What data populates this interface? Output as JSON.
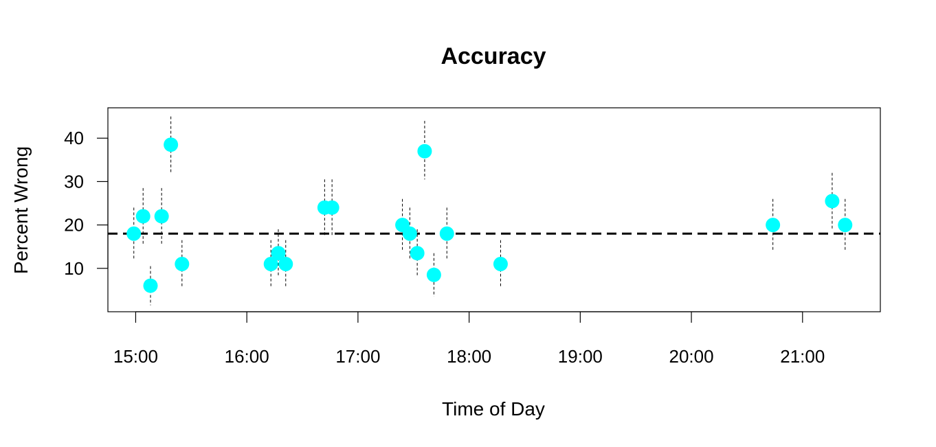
{
  "chart_data": {
    "type": "scatter",
    "title": "Accuracy",
    "xlabel": "Time of Day",
    "ylabel": "Percent Wrong",
    "xlim": [
      "14:45",
      "21:42"
    ],
    "ylim": [
      0,
      47
    ],
    "x_ticks": [
      "15:00",
      "16:00",
      "17:00",
      "18:00",
      "19:00",
      "20:00",
      "21:00"
    ],
    "y_ticks": [
      10,
      20,
      30,
      40
    ],
    "grid": false,
    "legend": "none",
    "reference_line": {
      "y": 18,
      "style": "dashed",
      "color": "#000000"
    },
    "point_color": "#00ffff",
    "error_bar_style": "dashed",
    "points": [
      {
        "x": "14:59",
        "y": 18.0,
        "lo": 12.0,
        "hi": 24.0
      },
      {
        "x": "15:04",
        "y": 22.0,
        "lo": 15.5,
        "hi": 28.5
      },
      {
        "x": "15:08",
        "y": 6.0,
        "lo": 1.5,
        "hi": 10.5
      },
      {
        "x": "15:14",
        "y": 22.0,
        "lo": 15.5,
        "hi": 28.5
      },
      {
        "x": "15:19",
        "y": 38.5,
        "lo": 32.0,
        "hi": 45.0
      },
      {
        "x": "15:25",
        "y": 11.0,
        "lo": 5.5,
        "hi": 16.5
      },
      {
        "x": "16:13",
        "y": 11.0,
        "lo": 5.5,
        "hi": 16.5
      },
      {
        "x": "16:17",
        "y": 13.5,
        "lo": 8.0,
        "hi": 19.0
      },
      {
        "x": "16:21",
        "y": 11.0,
        "lo": 5.5,
        "hi": 16.5
      },
      {
        "x": "16:42",
        "y": 24.0,
        "lo": 17.5,
        "hi": 30.5
      },
      {
        "x": "16:46",
        "y": 24.0,
        "lo": 17.5,
        "hi": 30.5
      },
      {
        "x": "17:24",
        "y": 20.0,
        "lo": 14.0,
        "hi": 26.0
      },
      {
        "x": "17:28",
        "y": 18.0,
        "lo": 12.0,
        "hi": 24.0
      },
      {
        "x": "17:32",
        "y": 13.5,
        "lo": 8.0,
        "hi": 19.0
      },
      {
        "x": "17:36",
        "y": 37.0,
        "lo": 30.5,
        "hi": 44.0
      },
      {
        "x": "17:41",
        "y": 8.5,
        "lo": 3.5,
        "hi": 13.5
      },
      {
        "x": "17:48",
        "y": 18.0,
        "lo": 12.0,
        "hi": 24.0
      },
      {
        "x": "18:17",
        "y": 11.0,
        "lo": 5.5,
        "hi": 16.5
      },
      {
        "x": "20:44",
        "y": 20.0,
        "lo": 14.0,
        "hi": 26.0
      },
      {
        "x": "21:16",
        "y": 25.5,
        "lo": 19.0,
        "hi": 32.0
      },
      {
        "x": "21:23",
        "y": 20.0,
        "lo": 14.0,
        "hi": 26.0
      }
    ]
  }
}
